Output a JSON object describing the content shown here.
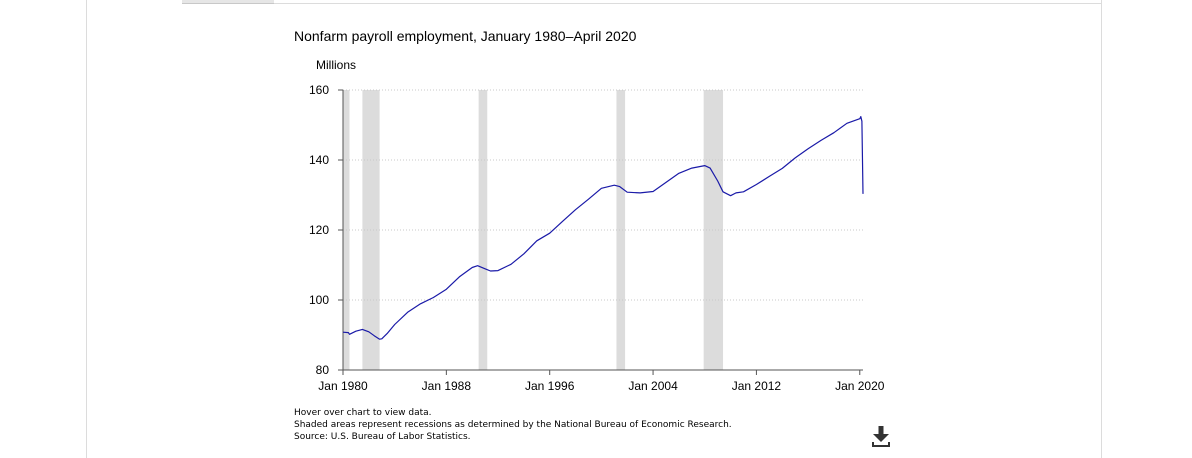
{
  "notes": {
    "hover": "Hover over chart to view data.",
    "shading": "Shaded areas represent recessions as determined by the National Bureau of Economic Research.",
    "source": "Source: U.S. Bureau of Labor Statistics."
  },
  "download_icon": "download-icon",
  "colors": {
    "series": "#1a1aa8",
    "recession": "#dcdcdc",
    "grid": "#c8c8c8"
  },
  "chart_data": {
    "type": "line",
    "title": "Nonfarm payroll employment, January 1980–April 2020",
    "ylabel": "Millions",
    "xlabel": "",
    "ylim": [
      80,
      160
    ],
    "yticks": [
      80,
      100,
      120,
      140,
      160
    ],
    "xlim": [
      "1980-01",
      "2020-04"
    ],
    "xticks": [
      "Jan 1980",
      "Jan 1988",
      "Jan 1996",
      "Jan 2004",
      "Jan 2012",
      "Jan 2020"
    ],
    "grid": true,
    "recessions": [
      [
        "1980-01",
        "1980-07"
      ],
      [
        "1981-07",
        "1982-11"
      ],
      [
        "1990-07",
        "1991-03"
      ],
      [
        "2001-03",
        "2001-11"
      ],
      [
        "2007-12",
        "2009-06"
      ]
    ],
    "x": [
      "1980-01",
      "1980-06",
      "1980-07",
      "1981-01",
      "1981-07",
      "1982-01",
      "1982-06",
      "1982-11",
      "1983-01",
      "1983-06",
      "1984-01",
      "1985-01",
      "1986-01",
      "1987-01",
      "1988-01",
      "1989-01",
      "1990-01",
      "1990-06",
      "1991-01",
      "1991-06",
      "1992-01",
      "1993-01",
      "1994-01",
      "1995-01",
      "1996-01",
      "1997-01",
      "1998-01",
      "1999-01",
      "2000-01",
      "2001-01",
      "2001-06",
      "2002-01",
      "2003-01",
      "2004-01",
      "2005-01",
      "2006-01",
      "2007-01",
      "2008-01",
      "2008-06",
      "2009-01",
      "2009-06",
      "2010-01",
      "2010-06",
      "2011-01",
      "2012-01",
      "2013-01",
      "2014-01",
      "2015-01",
      "2016-01",
      "2017-01",
      "2018-01",
      "2019-01",
      "2020-01",
      "2020-02",
      "2020-03",
      "2020-04"
    ],
    "values": [
      90.8,
      90.7,
      90.2,
      91.1,
      91.6,
      90.9,
      89.8,
      88.8,
      88.9,
      90.4,
      93.0,
      96.5,
      98.9,
      100.7,
      103.1,
      106.6,
      109.3,
      109.8,
      108.9,
      108.3,
      108.4,
      110.2,
      113.2,
      116.9,
      119.1,
      122.5,
      125.8,
      128.8,
      131.9,
      132.8,
      132.4,
      130.8,
      130.6,
      131.0,
      133.6,
      136.2,
      137.7,
      138.4,
      137.7,
      134.0,
      130.9,
      129.8,
      130.6,
      130.9,
      133.0,
      135.3,
      137.6,
      140.6,
      143.2,
      145.6,
      147.8,
      150.5,
      151.8,
      152.4,
      151.1,
      130.3
    ],
    "series": [
      {
        "name": "",
        "values_ref": "values"
      }
    ]
  }
}
